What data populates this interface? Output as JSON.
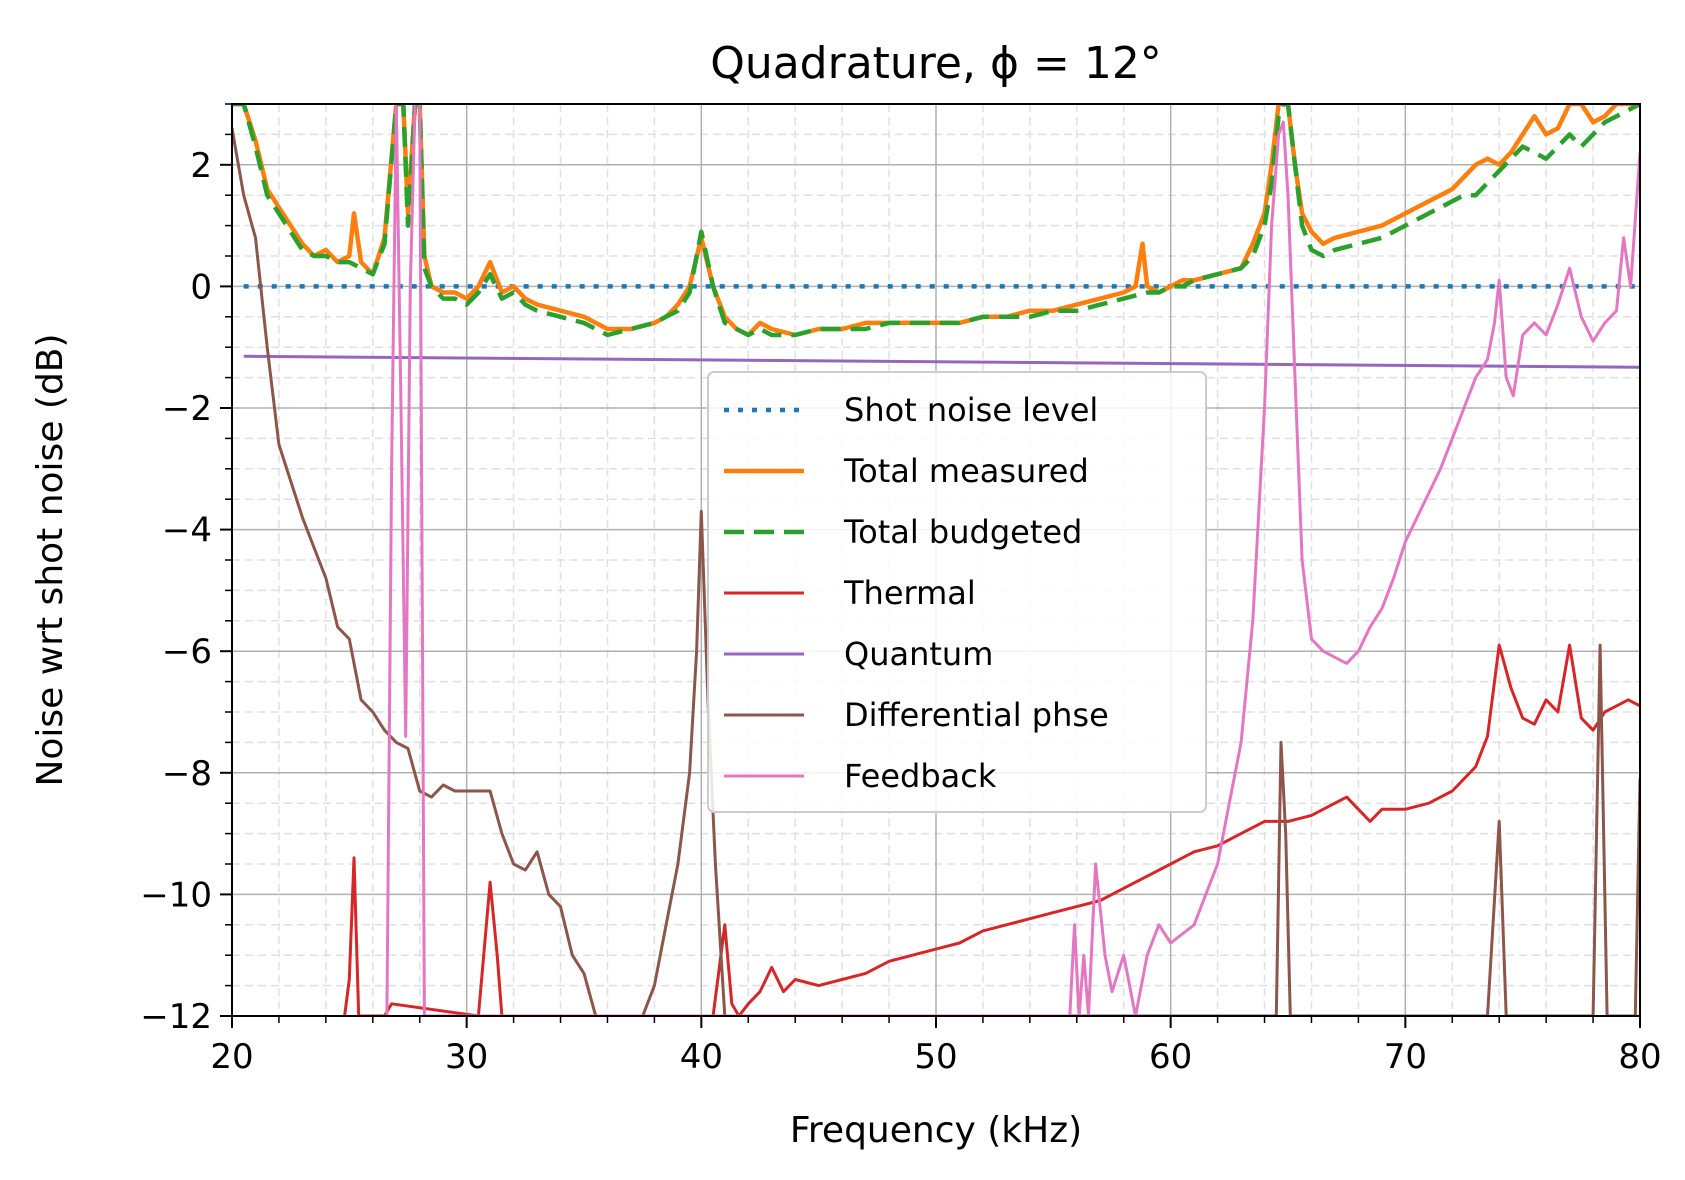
{
  "chart_data": {
    "type": "line",
    "title": "Quadrature, ϕ = 12°",
    "xlabel": "Frequency (kHz)",
    "ylabel": "Noise wrt shot noise (dB)",
    "xlim": [
      20,
      80
    ],
    "ylim": [
      -12,
      3
    ],
    "xticks": [
      20,
      30,
      40,
      50,
      60,
      70,
      80
    ],
    "xtick_labels": [
      "20",
      "30",
      "40",
      "50",
      "60",
      "70",
      "80"
    ],
    "yticks": [
      -12,
      -10,
      -8,
      -6,
      -4,
      -2,
      0,
      2
    ],
    "ytick_labels": [
      "−12",
      "−10",
      "−8",
      "−6",
      "−4",
      "−2",
      "0",
      "2"
    ],
    "grid": "major solid, minor dashed",
    "legend_position": "center",
    "series": [
      {
        "name": "Shot noise level",
        "color": "#1f77b4",
        "style": "dotted",
        "x": [
          20.5,
          80
        ],
        "y": [
          0,
          0
        ]
      },
      {
        "name": "Total measured",
        "color": "#ff7f0e",
        "style": "solid",
        "x": [
          20,
          20.5,
          21,
          21.5,
          22,
          22.5,
          23,
          23.5,
          24,
          24.5,
          25,
          25.2,
          25.5,
          26,
          26.5,
          27,
          27.3,
          27.5,
          27.8,
          28,
          28.2,
          28.5,
          29,
          29.5,
          30,
          30.5,
          31,
          31.5,
          32,
          32.5,
          33,
          34,
          35,
          36,
          37,
          38,
          38.5,
          39,
          39.5,
          40,
          40.5,
          41,
          41.5,
          42,
          42.5,
          43,
          44,
          45,
          46,
          47,
          48,
          49,
          50,
          51,
          52,
          53,
          54,
          55,
          56,
          57,
          58,
          58.5,
          58.8,
          59,
          59.5,
          60,
          60.5,
          61,
          62,
          63,
          63.5,
          64,
          64.3,
          64.6,
          64.8,
          65,
          65.3,
          65.6,
          66,
          66.5,
          67,
          68,
          69,
          70,
          71,
          72,
          72.5,
          73,
          73.5,
          74,
          74.5,
          75,
          75.5,
          76,
          76.5,
          77,
          77.5,
          78,
          78.5,
          79,
          79.5,
          80
        ],
        "y": [
          3.0,
          3.0,
          2.4,
          1.6,
          1.3,
          1.0,
          0.7,
          0.5,
          0.6,
          0.4,
          0.5,
          1.2,
          0.4,
          0.2,
          0.8,
          3.0,
          3.0,
          1.2,
          3.0,
          3.0,
          0.5,
          0.0,
          -0.1,
          -0.1,
          -0.2,
          0.0,
          0.4,
          -0.1,
          0.0,
          -0.2,
          -0.3,
          -0.4,
          -0.5,
          -0.7,
          -0.7,
          -0.6,
          -0.5,
          -0.3,
          0.0,
          0.8,
          0.0,
          -0.5,
          -0.7,
          -0.8,
          -0.6,
          -0.7,
          -0.8,
          -0.7,
          -0.7,
          -0.6,
          -0.6,
          -0.6,
          -0.6,
          -0.6,
          -0.5,
          -0.5,
          -0.4,
          -0.4,
          -0.3,
          -0.2,
          -0.1,
          0.0,
          0.7,
          0.0,
          -0.1,
          0.0,
          0.1,
          0.1,
          0.2,
          0.3,
          0.7,
          1.2,
          2.0,
          3.0,
          3.0,
          3.0,
          2.0,
          1.2,
          0.9,
          0.7,
          0.8,
          0.9,
          1.0,
          1.2,
          1.4,
          1.6,
          1.8,
          2.0,
          2.1,
          2.0,
          2.2,
          2.5,
          2.8,
          2.5,
          2.6,
          3.0,
          3.0,
          2.7,
          2.8,
          3.0,
          3.0,
          3.0
        ]
      },
      {
        "name": "Total budgeted",
        "color": "#2ca02c",
        "style": "dashed",
        "x": [
          20,
          20.5,
          21,
          21.5,
          22,
          22.5,
          23,
          23.5,
          24,
          24.5,
          25,
          25.5,
          26,
          26.5,
          27,
          27.3,
          27.5,
          27.8,
          28,
          28.2,
          28.5,
          29,
          29.5,
          30,
          30.5,
          31,
          31.5,
          32,
          32.5,
          33,
          34,
          35,
          36,
          37,
          38,
          38.5,
          39,
          39.5,
          40,
          40.5,
          41,
          41.5,
          42,
          42.5,
          43,
          44,
          45,
          46,
          47,
          48,
          49,
          50,
          51,
          52,
          53,
          54,
          55,
          56,
          57,
          58,
          59,
          59.5,
          60,
          60.5,
          61,
          62,
          63,
          63.5,
          64,
          64.3,
          64.6,
          64.8,
          65,
          65.3,
          65.6,
          66,
          66.5,
          67,
          68,
          69,
          70,
          71,
          72,
          72.5,
          73,
          73.5,
          74,
          74.5,
          75,
          75.5,
          76,
          76.5,
          77,
          77.5,
          78,
          78.5,
          79,
          79.5,
          80
        ],
        "y": [
          3.0,
          3.0,
          2.3,
          1.5,
          1.2,
          0.9,
          0.6,
          0.5,
          0.5,
          0.4,
          0.4,
          0.3,
          0.2,
          0.7,
          3.0,
          3.0,
          1.0,
          3.0,
          3.0,
          0.3,
          0.0,
          -0.2,
          -0.2,
          -0.3,
          -0.1,
          0.2,
          -0.2,
          -0.1,
          -0.3,
          -0.4,
          -0.5,
          -0.6,
          -0.8,
          -0.7,
          -0.6,
          -0.5,
          -0.4,
          -0.1,
          0.9,
          0.0,
          -0.6,
          -0.7,
          -0.8,
          -0.7,
          -0.8,
          -0.8,
          -0.7,
          -0.7,
          -0.7,
          -0.6,
          -0.6,
          -0.6,
          -0.6,
          -0.5,
          -0.5,
          -0.5,
          -0.4,
          -0.4,
          -0.3,
          -0.2,
          -0.1,
          -0.1,
          0.0,
          0.0,
          0.1,
          0.2,
          0.3,
          0.5,
          1.0,
          1.7,
          2.8,
          3.0,
          3.0,
          2.0,
          1.0,
          0.6,
          0.5,
          0.6,
          0.7,
          0.8,
          1.0,
          1.2,
          1.4,
          1.5,
          1.5,
          1.7,
          1.9,
          2.1,
          2.3,
          2.2,
          2.1,
          2.3,
          2.5,
          2.3,
          2.5,
          2.7,
          2.8,
          2.9,
          3.0
        ]
      },
      {
        "name": "Thermal",
        "color": "#d62728",
        "style": "solid",
        "x": [
          24.8,
          25.0,
          25.2,
          25.4,
          26.5,
          26.8,
          30.5,
          31.0,
          31.3,
          31.5,
          40.5,
          41.0,
          41.3,
          41.6,
          42.0,
          42.5,
          43,
          43.5,
          44,
          45,
          46,
          47,
          48,
          49,
          50,
          51,
          52,
          53,
          54,
          55,
          56,
          57,
          58,
          59,
          60,
          61,
          62,
          63,
          64,
          65,
          66,
          67,
          67.5,
          68,
          68.5,
          69,
          70,
          71,
          72,
          73,
          73.5,
          74,
          74.5,
          75,
          75.5,
          76,
          76.5,
          77,
          77.5,
          78,
          78.5,
          79,
          79.5,
          80
        ],
        "y": [
          -12,
          -11.4,
          -9.4,
          -12,
          -12,
          -11.8,
          -12,
          -9.8,
          -11.0,
          -12,
          -12,
          -10.5,
          -11.8,
          -12,
          -11.8,
          -11.6,
          -11.2,
          -11.6,
          -11.4,
          -11.5,
          -11.4,
          -11.3,
          -11.1,
          -11.0,
          -10.9,
          -10.8,
          -10.6,
          -10.5,
          -10.4,
          -10.3,
          -10.2,
          -10.1,
          -9.9,
          -9.7,
          -9.5,
          -9.3,
          -9.2,
          -9.0,
          -8.8,
          -8.8,
          -8.7,
          -8.5,
          -8.4,
          -8.6,
          -8.8,
          -8.6,
          -8.6,
          -8.5,
          -8.3,
          -7.9,
          -7.4,
          -5.9,
          -6.6,
          -7.1,
          -7.2,
          -6.8,
          -7.0,
          -5.9,
          -7.1,
          -7.3,
          -7.0,
          -6.9,
          -6.8,
          -6.9
        ]
      },
      {
        "name": "Quantum",
        "color": "#9467bd",
        "style": "solid",
        "x": [
          20.5,
          80
        ],
        "y": [
          -1.15,
          -1.33
        ]
      },
      {
        "name": "Differential phse",
        "color": "#8c564b",
        "style": "solid",
        "x": [
          20,
          20.5,
          21,
          21.5,
          22,
          22.5,
          23,
          23.5,
          24,
          24.5,
          25,
          25.5,
          26,
          26.5,
          27,
          27.5,
          28,
          28.5,
          29,
          29.5,
          30,
          30.5,
          31,
          31.5,
          32,
          32.5,
          33,
          33.5,
          34,
          34.5,
          35,
          35.5,
          37.5,
          38,
          38.5,
          39,
          39.5,
          39.8,
          40,
          40.3,
          40.6,
          41,
          64.5,
          64.7,
          64.9,
          65.1,
          73.5,
          74,
          74.3,
          78,
          78.3,
          78.6,
          79.8,
          80
        ],
        "y": [
          2.6,
          1.5,
          0.8,
          -1.0,
          -2.6,
          -3.2,
          -3.8,
          -4.3,
          -4.8,
          -5.6,
          -5.8,
          -6.8,
          -7.0,
          -7.3,
          -7.5,
          -7.6,
          -8.3,
          -8.4,
          -8.2,
          -8.3,
          -8.3,
          -8.3,
          -8.3,
          -9.0,
          -9.5,
          -9.6,
          -9.3,
          -10.0,
          -10.2,
          -11.0,
          -11.3,
          -12.0,
          -12.0,
          -11.5,
          -10.5,
          -9.5,
          -8.0,
          -6.0,
          -3.7,
          -7.0,
          -9.5,
          -12.0,
          -12.0,
          -7.5,
          -9.0,
          -12.0,
          -12.0,
          -8.8,
          -12.0,
          -12.0,
          -5.9,
          -12.0,
          -12.0,
          -8.1
        ]
      },
      {
        "name": "Feedback",
        "color": "#e377c2",
        "style": "solid",
        "x": [
          26.6,
          26.8,
          27.0,
          27.2,
          27.4,
          27.6,
          27.8,
          28.0,
          28.2,
          55.7,
          55.9,
          56.1,
          56.3,
          56.5,
          56.8,
          57.2,
          57.5,
          58.0,
          58.5,
          59.0,
          59.5,
          60,
          61,
          62,
          62.5,
          63,
          63.5,
          64,
          64.3,
          64.6,
          64.8,
          65.0,
          65.3,
          65.6,
          66,
          66.5,
          67,
          67.5,
          68,
          68.5,
          69,
          69.5,
          70,
          70.5,
          71,
          71.5,
          72,
          72.5,
          73,
          73.5,
          73.8,
          74,
          74.3,
          74.6,
          75,
          75.5,
          76,
          76.5,
          77,
          77.5,
          78,
          78.5,
          79,
          79.3,
          79.6,
          80
        ],
        "y": [
          -12.0,
          -3.0,
          3.0,
          -2.0,
          -7.4,
          0.0,
          3.0,
          3.0,
          -12.0,
          -12.0,
          -10.5,
          -12.0,
          -11.0,
          -12.0,
          -9.5,
          -11.0,
          -11.6,
          -11.0,
          -12.0,
          -11.0,
          -10.5,
          -10.8,
          -10.5,
          -9.5,
          -8.5,
          -7.5,
          -5.5,
          -2.0,
          1.0,
          2.5,
          2.7,
          1.5,
          -1.5,
          -4.5,
          -5.8,
          -6.0,
          -6.1,
          -6.2,
          -6.0,
          -5.6,
          -5.3,
          -4.8,
          -4.2,
          -3.8,
          -3.4,
          -3.0,
          -2.5,
          -2.0,
          -1.5,
          -1.2,
          -0.6,
          0.1,
          -1.5,
          -1.8,
          -0.8,
          -0.6,
          -0.8,
          -0.3,
          0.3,
          -0.5,
          -0.9,
          -0.6,
          -0.4,
          0.8,
          0.0,
          2.2
        ]
      }
    ]
  }
}
